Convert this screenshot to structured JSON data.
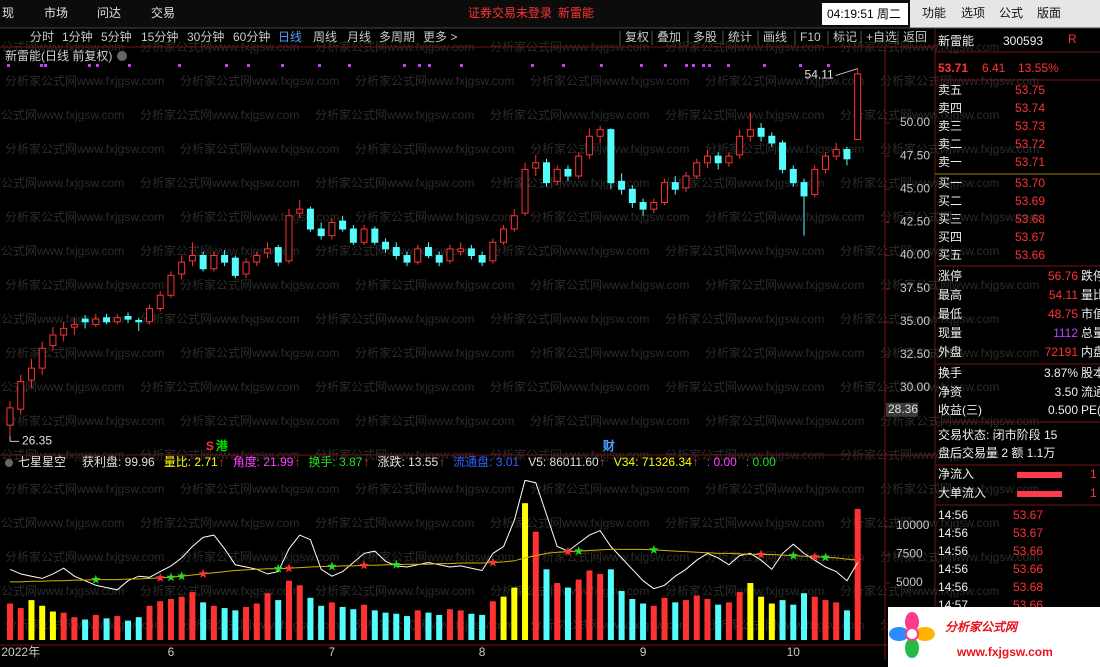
{
  "menu": {
    "left": [
      "现",
      "市场",
      "问达",
      "交易"
    ],
    "status": "证券交易未登录",
    "stock": "新雷能",
    "time": "04:19:51 周二",
    "right": [
      "功能",
      "选项",
      "公式",
      "版面"
    ]
  },
  "toolbar": {
    "periods": [
      "分时",
      "1分钟",
      "5分钟",
      "15分钟",
      "30分钟",
      "60分钟",
      "日线",
      "周线",
      "月线",
      "多周期",
      "更多 >"
    ],
    "active": 6,
    "buttons": [
      "复权",
      "叠加",
      "多股",
      "统计",
      "画线",
      "F10",
      "标记",
      "+自选",
      "返回"
    ]
  },
  "watermark": "分析家公式网www.fxjgsw.com",
  "chart_data": [
    {
      "type": "candlestick",
      "title": "新雷能(日线 前复权)",
      "up_color": "#ff3232",
      "down_color": "#54fcfc",
      "ylim": [
        26,
        54.5
      ],
      "yticks": [
        {
          "value": 30,
          "label": "30.00"
        },
        {
          "value": 32.5,
          "label": "32.50"
        },
        {
          "value": 35,
          "label": "35.00"
        },
        {
          "value": 37.5,
          "label": "37.50"
        },
        {
          "value": 40,
          "label": "40.00"
        },
        {
          "value": 42.5,
          "label": "42.50"
        },
        {
          "value": 45,
          "label": "45.00"
        },
        {
          "value": 47.5,
          "label": "47.50"
        },
        {
          "value": 50,
          "label": "50.00"
        }
      ],
      "cursor": {
        "value": 28.36,
        "label": "28.36"
      },
      "annotations": [
        {
          "index": 79,
          "value": 54.11,
          "label": "54.11"
        },
        {
          "index": 0,
          "value": 26.35,
          "label": "26.35"
        }
      ],
      "events": [
        {
          "index": 19,
          "text": "S",
          "color": "#ff3232"
        },
        {
          "index": 19,
          "text": "港",
          "color": "#00e000"
        },
        {
          "index": 56,
          "text": "财",
          "color": "#4aa0ff"
        }
      ],
      "ohlc": [
        [
          27.2,
          29.0,
          26.35,
          28.5
        ],
        [
          28.4,
          31.0,
          28.0,
          30.5
        ],
        [
          30.6,
          32.2,
          30.0,
          31.5
        ],
        [
          31.5,
          33.5,
          31.0,
          33.0
        ],
        [
          33.2,
          34.6,
          32.8,
          34.0
        ],
        [
          34.0,
          35.0,
          33.5,
          34.5
        ],
        [
          34.6,
          35.3,
          34.0,
          34.8
        ],
        [
          35.2,
          35.5,
          34.5,
          35.0
        ],
        [
          34.8,
          35.6,
          34.6,
          35.2
        ],
        [
          35.3,
          35.6,
          34.8,
          35.0
        ],
        [
          35.0,
          35.6,
          34.8,
          35.3
        ],
        [
          35.4,
          35.7,
          34.9,
          35.2
        ],
        [
          35.1,
          35.3,
          34.3,
          35.0
        ],
        [
          35.0,
          36.3,
          34.8,
          36.0
        ],
        [
          36.0,
          37.3,
          35.8,
          37.0
        ],
        [
          37.0,
          38.8,
          36.8,
          38.5
        ],
        [
          38.6,
          40.0,
          38.2,
          39.5
        ],
        [
          39.6,
          41.0,
          39.2,
          40.0
        ],
        [
          40.0,
          40.3,
          38.8,
          39.0
        ],
        [
          39.0,
          40.3,
          38.8,
          40.0
        ],
        [
          40.0,
          40.4,
          39.2,
          39.5
        ],
        [
          39.8,
          40.0,
          38.3,
          38.5
        ],
        [
          38.6,
          39.8,
          38.3,
          39.5
        ],
        [
          39.5,
          40.3,
          39.2,
          40.0
        ],
        [
          40.2,
          41.0,
          39.8,
          40.5
        ],
        [
          40.6,
          40.8,
          39.2,
          39.5
        ],
        [
          39.6,
          43.5,
          39.4,
          43.0
        ],
        [
          43.2,
          44.2,
          42.8,
          43.5
        ],
        [
          43.5,
          43.7,
          41.8,
          42.0
        ],
        [
          42.0,
          42.5,
          41.2,
          41.5
        ],
        [
          41.5,
          42.8,
          41.2,
          42.5
        ],
        [
          42.6,
          43.0,
          41.8,
          42.0
        ],
        [
          42.0,
          42.3,
          40.8,
          41.0
        ],
        [
          41.0,
          42.3,
          40.8,
          42.0
        ],
        [
          42.0,
          42.2,
          40.8,
          41.0
        ],
        [
          41.0,
          41.3,
          40.2,
          40.5
        ],
        [
          40.6,
          41.0,
          39.7,
          40.0
        ],
        [
          40.0,
          40.3,
          39.2,
          39.5
        ],
        [
          39.5,
          40.8,
          39.3,
          40.5
        ],
        [
          40.6,
          41.0,
          39.8,
          40.0
        ],
        [
          40.0,
          40.3,
          39.2,
          39.5
        ],
        [
          39.6,
          40.8,
          39.4,
          40.5
        ],
        [
          40.3,
          41.0,
          40.0,
          40.5
        ],
        [
          40.5,
          40.8,
          39.7,
          40.0
        ],
        [
          40.0,
          40.3,
          39.2,
          39.5
        ],
        [
          39.6,
          41.3,
          39.4,
          41.0
        ],
        [
          41.0,
          42.3,
          40.8,
          42.0
        ],
        [
          42.0,
          43.5,
          41.8,
          43.0
        ],
        [
          43.2,
          47.0,
          43.0,
          46.5
        ],
        [
          46.6,
          47.6,
          46.0,
          47.0
        ],
        [
          47.0,
          47.3,
          45.2,
          45.5
        ],
        [
          45.6,
          46.8,
          45.3,
          46.5
        ],
        [
          46.5,
          46.8,
          45.6,
          46.0
        ],
        [
          46.0,
          47.8,
          45.8,
          47.5
        ],
        [
          47.6,
          49.6,
          47.3,
          49.0
        ],
        [
          49.0,
          49.8,
          48.5,
          49.5
        ],
        [
          49.5,
          49.6,
          45.0,
          45.5
        ],
        [
          45.6,
          46.2,
          44.6,
          45.0
        ],
        [
          45.0,
          45.3,
          43.6,
          44.0
        ],
        [
          44.0,
          44.3,
          43.0,
          43.5
        ],
        [
          43.5,
          44.3,
          43.2,
          44.0
        ],
        [
          44.0,
          45.8,
          43.8,
          45.5
        ],
        [
          45.5,
          46.0,
          44.6,
          45.0
        ],
        [
          45.1,
          46.3,
          44.8,
          46.0
        ],
        [
          46.0,
          47.3,
          45.8,
          47.0
        ],
        [
          47.0,
          48.0,
          46.6,
          47.5
        ],
        [
          47.5,
          47.8,
          46.5,
          47.0
        ],
        [
          47.0,
          47.8,
          46.7,
          47.5
        ],
        [
          47.6,
          49.5,
          47.3,
          49.0
        ],
        [
          49.0,
          50.8,
          48.6,
          49.5
        ],
        [
          49.6,
          50.0,
          48.6,
          49.0
        ],
        [
          49.0,
          49.3,
          48.2,
          48.5
        ],
        [
          48.5,
          48.7,
          46.2,
          46.5
        ],
        [
          46.5,
          46.8,
          45.2,
          45.5
        ],
        [
          45.5,
          45.8,
          41.5,
          44.5
        ],
        [
          44.6,
          46.8,
          44.4,
          46.5
        ],
        [
          46.5,
          47.8,
          46.2,
          47.5
        ],
        [
          47.5,
          48.5,
          47.2,
          48.0
        ],
        [
          48.0,
          48.2,
          46.8,
          47.3
        ],
        [
          48.75,
          54.11,
          48.75,
          53.71
        ]
      ]
    },
    {
      "type": "volume",
      "title": "七星星空",
      "highlight_color": "#ffff00",
      "highlight": [
        2,
        3,
        4,
        46,
        47,
        48,
        69,
        70,
        71
      ],
      "ylim": [
        0,
        14000
      ],
      "yticks": [
        5000,
        7500,
        10000
      ],
      "categories": [
        null,
        "2022年",
        null,
        null,
        null,
        null,
        null,
        null,
        null,
        null,
        null,
        null,
        null,
        null,
        null,
        "6",
        null,
        null,
        null,
        null,
        null,
        null,
        null,
        null,
        null,
        null,
        null,
        null,
        null,
        null,
        "7",
        null,
        null,
        null,
        null,
        null,
        null,
        null,
        null,
        null,
        null,
        null,
        null,
        null,
        "8",
        null,
        null,
        null,
        null,
        null,
        null,
        null,
        null,
        null,
        null,
        null,
        null,
        null,
        null,
        "9",
        null,
        null,
        null,
        null,
        null,
        null,
        null,
        null,
        null,
        null,
        null,
        null,
        null,
        "10",
        null,
        null,
        null,
        null,
        null,
        null
      ],
      "values": [
        3200,
        2800,
        3500,
        3000,
        2500,
        2400,
        2000,
        1800,
        2200,
        1900,
        2100,
        1700,
        2000,
        3000,
        3400,
        3600,
        3800,
        4200,
        3300,
        3000,
        2800,
        2600,
        2900,
        3200,
        4100,
        3500,
        5200,
        4800,
        3700,
        3000,
        3300,
        2900,
        2700,
        3100,
        2600,
        2400,
        2300,
        2100,
        2600,
        2400,
        2200,
        2700,
        2600,
        2300,
        2200,
        3400,
        3800,
        4600,
        12000,
        9500,
        6200,
        5000,
        4600,
        5300,
        6100,
        5800,
        6200,
        4300,
        3600,
        3200,
        3000,
        3700,
        3300,
        3500,
        3900,
        3600,
        3100,
        3300,
        4200,
        5000,
        3800,
        3200,
        3500,
        3100,
        4100,
        3800,
        3500,
        3300,
        2600,
        11500
      ],
      "lines": [
        {
          "color": "#ffffff",
          "values": [
            6200,
            5800,
            5600,
            5400,
            5800,
            6300,
            5600,
            5200,
            4800,
            4600,
            4400,
            5200,
            5600,
            5500,
            6000,
            6500,
            7200,
            8200,
            9000,
            9200,
            8000,
            6600,
            6400,
            6200,
            5800,
            6000,
            8000,
            9200,
            8800,
            6200,
            5600,
            6000,
            6800,
            7600,
            7800,
            6900,
            6500,
            6400,
            6600,
            6800,
            6600,
            6400,
            6500,
            6300,
            6100,
            7600,
            8200,
            10500,
            14000,
            13800,
            11000,
            8200,
            7800,
            8500,
            9200,
            9600,
            8200,
            7200,
            6200,
            5200,
            4500,
            4800,
            5600,
            6200,
            7000,
            7600,
            7200,
            6600,
            7400,
            7600,
            7000,
            6200,
            7600,
            8400,
            7600,
            7000,
            6400,
            6000,
            5200,
            6800
          ]
        },
        {
          "color": "#d4b000",
          "values": [
            5100,
            5100,
            5150,
            5150,
            5200,
            5200,
            5250,
            5250,
            5300,
            5300,
            5300,
            5350,
            5350,
            5400,
            5450,
            5500,
            5600,
            5700,
            5800,
            5900,
            6000,
            6100,
            6150,
            6200,
            6250,
            6250,
            6300,
            6350,
            6400,
            6450,
            6450,
            6500,
            6500,
            6550,
            6550,
            6600,
            6600,
            6650,
            6650,
            6650,
            6700,
            6700,
            6750,
            6750,
            6750,
            6800,
            6850,
            6950,
            7200,
            7400,
            7600,
            7700,
            7750,
            7800,
            7850,
            7900,
            7950,
            7950,
            7950,
            7950,
            7900,
            7850,
            7800,
            7750,
            7700,
            7650,
            7600,
            7600,
            7550,
            7500,
            7500,
            7500,
            7450,
            7400,
            7350,
            7300,
            7250,
            7200,
            7100,
            7000
          ]
        }
      ],
      "signals": [
        {
          "index": 8,
          "color": "#22dd22"
        },
        {
          "index": 14,
          "color": "#ff3232"
        },
        {
          "index": 15,
          "color": "#22dd22"
        },
        {
          "index": 16,
          "color": "#22dd22"
        },
        {
          "index": 18,
          "color": "#ff3232"
        },
        {
          "index": 25,
          "color": "#22dd22"
        },
        {
          "index": 26,
          "color": "#ff3232"
        },
        {
          "index": 30,
          "color": "#22dd22"
        },
        {
          "index": 33,
          "color": "#ff3232"
        },
        {
          "index": 36,
          "color": "#22dd22"
        },
        {
          "index": 45,
          "color": "#ff3232"
        },
        {
          "index": 52,
          "color": "#ff3232"
        },
        {
          "index": 53,
          "color": "#22dd22"
        },
        {
          "index": 60,
          "color": "#22dd22"
        },
        {
          "index": 70,
          "color": "#ff3232"
        },
        {
          "index": 73,
          "color": "#22dd22"
        },
        {
          "index": 75,
          "color": "#ff3232"
        },
        {
          "index": 76,
          "color": "#22dd22"
        },
        {
          "index": 79,
          "color": "#ff3232"
        }
      ],
      "readouts": [
        {
          "text": "获利盘: 99.96",
          "color": "#e0e0e0"
        },
        {
          "text": "量比: 2.71",
          "arrow": "↑",
          "color": "#ffff00"
        },
        {
          "text": "角度: 21.99",
          "arrow": "↑",
          "color": "#ff40ff"
        },
        {
          "text": "换手: 3.87",
          "arrow": "↑",
          "color": "#22dd22"
        },
        {
          "text": "涨跌: 13.55",
          "arrow": "↑",
          "color": "#e0e0e0"
        },
        {
          "text": "流通盘: 3.01",
          "color": "#3060ff"
        },
        {
          "text": "V5: 86011.60",
          "arrow": "↑",
          "color": "#e0e0e0"
        },
        {
          "text": "V34: 71326.34",
          "arrow": "↑",
          "color": "#ffff00"
        },
        {
          "text": ": 0.00",
          "color": "#ff40ff"
        },
        {
          "text": ": 0.00",
          "color": "#22dd22"
        }
      ]
    }
  ],
  "quote": {
    "name": "新雷能",
    "code": "300593",
    "flag": "R",
    "price": "53.71",
    "change": "6.41",
    "pct": "13.55%",
    "asks": [
      [
        "卖五",
        "53.75"
      ],
      [
        "卖四",
        "53.74"
      ],
      [
        "卖三",
        "53.73"
      ],
      [
        "卖二",
        "53.72"
      ],
      [
        "卖一",
        "53.71"
      ]
    ],
    "bids": [
      [
        "买一",
        "53.70"
      ],
      [
        "买二",
        "53.69"
      ],
      [
        "买三",
        "53.68"
      ],
      [
        "买四",
        "53.67"
      ],
      [
        "买五",
        "53.66"
      ]
    ],
    "stats": [
      [
        "涨停",
        "56.76",
        "跌停"
      ],
      [
        "最高",
        "54.11",
        "量比"
      ],
      [
        "最低",
        "48.75",
        "市值"
      ],
      [
        "现量",
        "1112",
        "总量"
      ],
      [
        "外盘",
        "72191",
        "内盘"
      ],
      [
        "换手",
        "3.87%",
        "股本"
      ],
      [
        "净资",
        "3.50",
        "流通"
      ],
      [
        "收益(三)",
        "0.500",
        "PE(动)"
      ]
    ],
    "status": "交易状态: 闭市阶段 15",
    "after_hours": "盘后交易量 2 额 1.1万",
    "flows": [
      [
        "净流入",
        "1"
      ],
      [
        "大单流入",
        "1"
      ]
    ],
    "ticks": [
      [
        "14:56",
        "53.67"
      ],
      [
        "14:56",
        "53.67"
      ],
      [
        "14:56",
        "53.66"
      ],
      [
        "14:56",
        "53.66"
      ],
      [
        "14:56",
        "53.68"
      ],
      [
        "14:57",
        "53.66"
      ]
    ]
  },
  "logo": {
    "name": "分析家公式网",
    "url": "www.fxjgsw.com"
  }
}
